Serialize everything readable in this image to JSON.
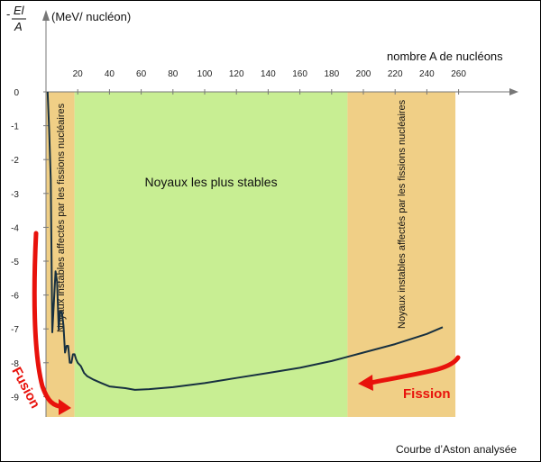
{
  "chart_data": {
    "type": "line",
    "ylabel_num": "El",
    "ylabel_den": "A",
    "ylabel_sign": "-",
    "yunit": "(MeV/ nucléon)",
    "xlabel": "nombre A de nucléons",
    "caption": "Courbe d’Aston analysée",
    "xlim": [
      0,
      265
    ],
    "ylim": [
      -9.6,
      0
    ],
    "x_ticks": [
      20,
      40,
      60,
      80,
      100,
      120,
      140,
      160,
      180,
      200,
      220,
      240,
      260
    ],
    "y_ticks": [
      0,
      -1,
      -2,
      -3,
      -4,
      -5,
      -6,
      -7,
      -8,
      -9
    ],
    "zones": [
      {
        "id": "left-unstable",
        "x_from": 0,
        "x_to": 18,
        "color": "#f0cf86",
        "label": "Noyaux instables affectés par les fissions nucléaires"
      },
      {
        "id": "stable",
        "x_from": 18,
        "x_to": 190,
        "color": "#c8ee93",
        "label": "Noyaux les plus stables"
      },
      {
        "id": "right-unstable",
        "x_from": 190,
        "x_to": 258,
        "color": "#f0cf86",
        "label": "Noyaux instables affectés par les fissions nucléaires"
      }
    ],
    "series": [
      {
        "color": "#173040",
        "points": [
          [
            1,
            0
          ],
          [
            2,
            -1.1
          ],
          [
            3,
            -2.6
          ],
          [
            4,
            -7.1
          ],
          [
            6,
            -5.3
          ],
          [
            7,
            -5.6
          ],
          [
            8,
            -7.0
          ],
          [
            9,
            -6.5
          ],
          [
            10,
            -6.5
          ],
          [
            11,
            -6.9
          ],
          [
            12,
            -7.7
          ],
          [
            13,
            -7.5
          ],
          [
            14,
            -7.5
          ],
          [
            15,
            -8.0
          ],
          [
            16,
            -8.0
          ],
          [
            17,
            -7.75
          ],
          [
            18,
            -7.75
          ],
          [
            19,
            -7.9
          ],
          [
            20,
            -8.0
          ],
          [
            22,
            -8.1
          ],
          [
            24,
            -8.3
          ],
          [
            26,
            -8.4
          ],
          [
            30,
            -8.5
          ],
          [
            35,
            -8.6
          ],
          [
            40,
            -8.7
          ],
          [
            50,
            -8.75
          ],
          [
            56,
            -8.8
          ],
          [
            65,
            -8.78
          ],
          [
            80,
            -8.72
          ],
          [
            100,
            -8.6
          ],
          [
            120,
            -8.45
          ],
          [
            140,
            -8.3
          ],
          [
            160,
            -8.15
          ],
          [
            180,
            -7.95
          ],
          [
            200,
            -7.7
          ],
          [
            220,
            -7.45
          ],
          [
            240,
            -7.15
          ],
          [
            250,
            -6.95
          ]
        ]
      }
    ],
    "annotations": [
      {
        "text": "Fusion",
        "color": "#e8120c"
      },
      {
        "text": "Fission",
        "color": "#e8120c"
      }
    ],
    "grid": false,
    "legend": "none"
  }
}
